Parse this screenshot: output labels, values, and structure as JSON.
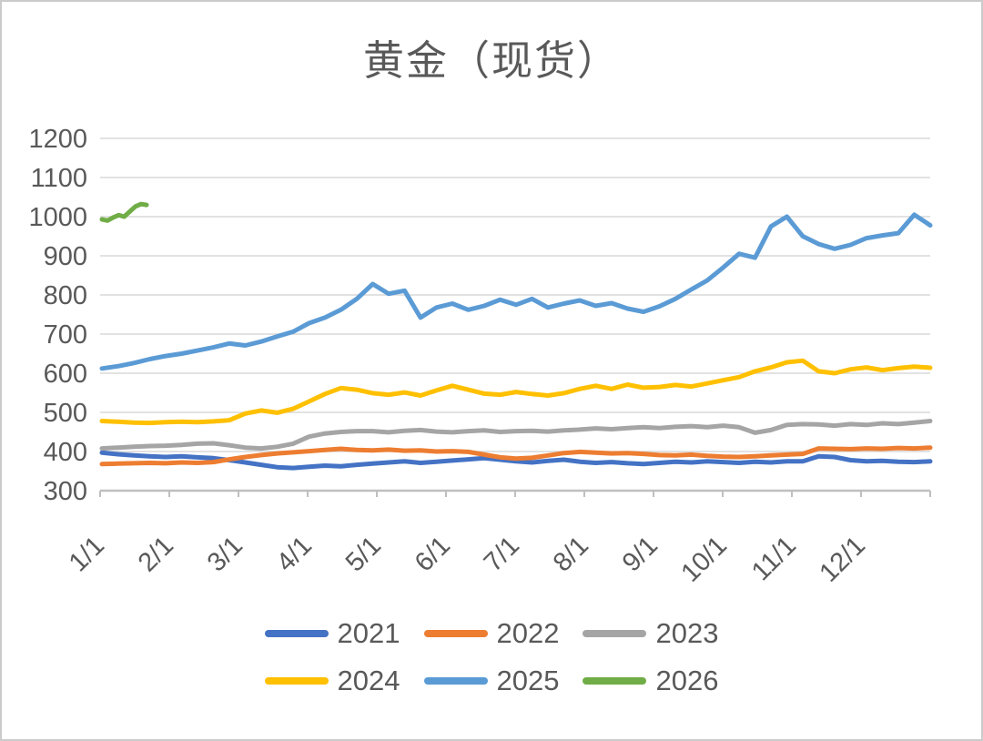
{
  "window": {
    "background_color": "#ffffff",
    "frame_border_color": "#cbcbcb"
  },
  "chart_data": {
    "type": "line",
    "title": "黄金（现货）",
    "subtitle": "",
    "grid": "horizontal gridlines on",
    "legend_position": "bottom, two rows",
    "x_axis": {
      "tick_labels": [
        "1/1",
        "2/1",
        "3/1",
        "4/1",
        "5/1",
        "6/1",
        "7/1",
        "8/1",
        "9/1",
        "10/1",
        "11/1",
        "12/1"
      ],
      "label_rotation_deg": -45,
      "total_ticks": 13,
      "note": "monthly ticks across one year; rightmost tick unlabeled"
    },
    "y_axis": {
      "min": 300,
      "max": 1200,
      "step": 100,
      "tick_labels": [
        "1200",
        "1100",
        "1000",
        "900",
        "800",
        "700",
        "600",
        "500",
        "400",
        "300"
      ]
    },
    "sampling": "values sampled weekly, weeks 0-52 spanning the year",
    "series": [
      {
        "name": "2021",
        "color": "#4472C4",
        "values": [
          397,
          393,
          390,
          388,
          386,
          388,
          385,
          383,
          378,
          372,
          366,
          360,
          358,
          361,
          364,
          362,
          366,
          369,
          372,
          375,
          371,
          374,
          377,
          380,
          383,
          379,
          375,
          372,
          376,
          379,
          374,
          371,
          373,
          370,
          368,
          371,
          374,
          372,
          375,
          373,
          371,
          374,
          372,
          375,
          375,
          388,
          386,
          378,
          375,
          376,
          374,
          373,
          375
        ]
      },
      {
        "name": "2022",
        "color": "#ED7D31",
        "values": [
          368,
          369,
          370,
          371,
          370,
          372,
          371,
          373,
          380,
          386,
          391,
          395,
          398,
          401,
          404,
          407,
          404,
          403,
          405,
          402,
          403,
          400,
          401,
          399,
          392,
          385,
          382,
          384,
          390,
          396,
          399,
          397,
          395,
          396,
          394,
          391,
          390,
          392,
          389,
          387,
          386,
          388,
          390,
          392,
          394,
          408,
          407,
          406,
          408,
          407,
          409,
          408,
          410
        ]
      },
      {
        "name": "2023",
        "color": "#A5A5A5",
        "values": [
          408,
          410,
          412,
          414,
          415,
          417,
          420,
          421,
          416,
          410,
          408,
          412,
          420,
          438,
          446,
          450,
          452,
          452,
          449,
          453,
          455,
          451,
          449,
          452,
          454,
          450,
          452,
          453,
          451,
          454,
          456,
          459,
          457,
          460,
          462,
          460,
          463,
          465,
          462,
          466,
          462,
          448,
          455,
          468,
          470,
          469,
          466,
          470,
          468,
          472,
          470,
          474,
          478
        ]
      },
      {
        "name": "2024",
        "color": "#FFC000",
        "values": [
          478,
          476,
          474,
          473,
          475,
          476,
          475,
          477,
          480,
          497,
          505,
          499,
          509,
          528,
          547,
          562,
          558,
          549,
          545,
          551,
          543,
          556,
          568,
          558,
          548,
          545,
          552,
          547,
          543,
          549,
          560,
          568,
          560,
          571,
          563,
          565,
          570,
          566,
          574,
          582,
          590,
          605,
          615,
          628,
          632,
          605,
          600,
          610,
          615,
          608,
          613,
          617,
          614
        ]
      },
      {
        "name": "2025",
        "color": "#5B9BD5",
        "values": [
          612,
          618,
          626,
          636,
          644,
          650,
          658,
          666,
          676,
          671,
          681,
          694,
          706,
          728,
          742,
          762,
          790,
          828,
          803,
          811,
          742,
          768,
          778,
          762,
          772,
          788,
          775,
          790,
          768,
          778,
          786,
          772,
          779,
          765,
          757,
          771,
          790,
          814,
          837,
          870,
          905,
          895,
          975,
          1000,
          950,
          930,
          918,
          928,
          945,
          952,
          958,
          1005,
          978
        ]
      },
      {
        "name": "2026",
        "color": "#70AD47",
        "x_weeks": [
          0,
          0.35,
          0.7,
          1.05,
          1.4,
          1.75,
          2.1,
          2.45,
          2.8
        ],
        "values": [
          993,
          990,
          998,
          1004,
          1000,
          1013,
          1026,
          1032,
          1030
        ]
      }
    ]
  },
  "legend": {
    "rows": [
      [
        "2021",
        "2022",
        "2023"
      ],
      [
        "2024",
        "2025",
        "2026"
      ]
    ]
  },
  "styles": {
    "title_color": "#595959",
    "axis_text_color": "#595959",
    "gridline_color": "#D9D9D9",
    "axis_line_color": "#BFBFBF",
    "line_stroke_width": 5
  }
}
